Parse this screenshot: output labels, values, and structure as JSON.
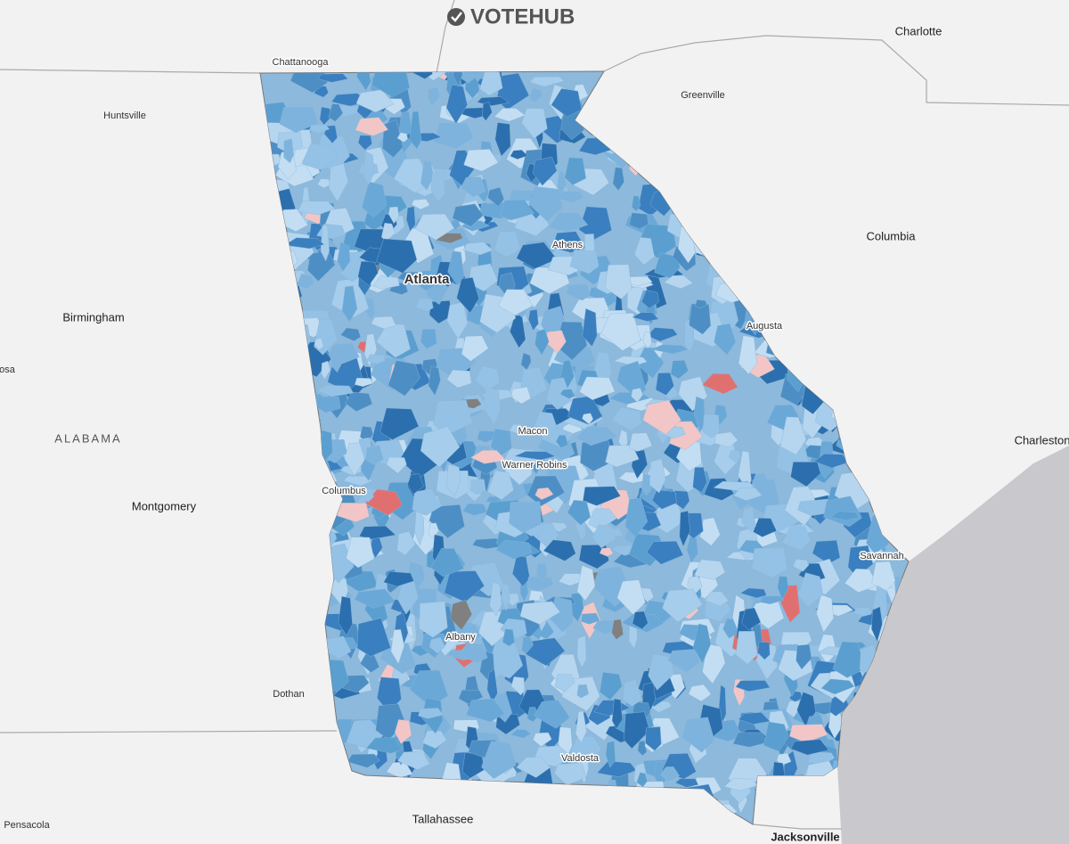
{
  "logo": "VOTEHUB",
  "labels": {
    "chattanooga": "Chattanooga",
    "huntsville": "Huntsville",
    "greenville": "Greenville",
    "charlotte": "Charlotte",
    "columbia": "Columbia",
    "athens": "Athens",
    "atlanta": "Atlanta",
    "birmingham": "Birmingham",
    "augusta": "Augusta",
    "osa": "osa",
    "alabama": "ALABAMA",
    "macon": "Macon",
    "charleston": "Charleston",
    "warner_robins": "Warner Robins",
    "columbus": "Columbus",
    "montgomery": "Montgomery",
    "savannah": "Savannah",
    "albany": "Albany",
    "dothan": "Dothan",
    "valdosta": "Valdosta",
    "tallahassee": "Tallahassee",
    "pensacola": "Pensacola",
    "jacksonville": "Jacksonville"
  }
}
